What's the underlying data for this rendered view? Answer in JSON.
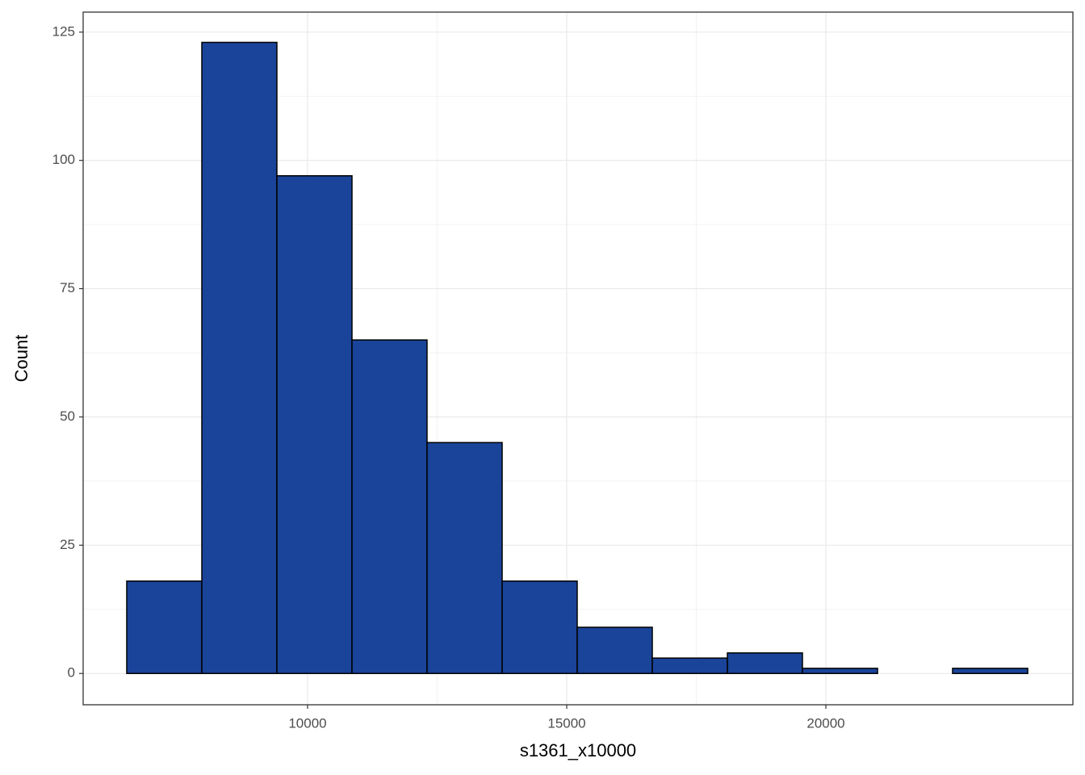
{
  "chart_data": {
    "type": "histogram",
    "x_label": "s1361_x10000",
    "y_label": "Count",
    "bins": [
      6511,
      7960,
      9408,
      10857,
      12305,
      13754,
      15202,
      16651,
      18100,
      19548,
      20997,
      22445,
      23894
    ],
    "counts": [
      18,
      123,
      97,
      65,
      45,
      18,
      9,
      3,
      4,
      1,
      0,
      1
    ],
    "color": "#1a4499",
    "xlim": [
      5670,
      24766
    ],
    "xticks": [
      10000,
      15000,
      20000
    ],
    "ylim": [
      -6.1,
      128.9
    ],
    "yticks": [
      0,
      25,
      50,
      75,
      100,
      125
    ],
    "grid": true
  }
}
